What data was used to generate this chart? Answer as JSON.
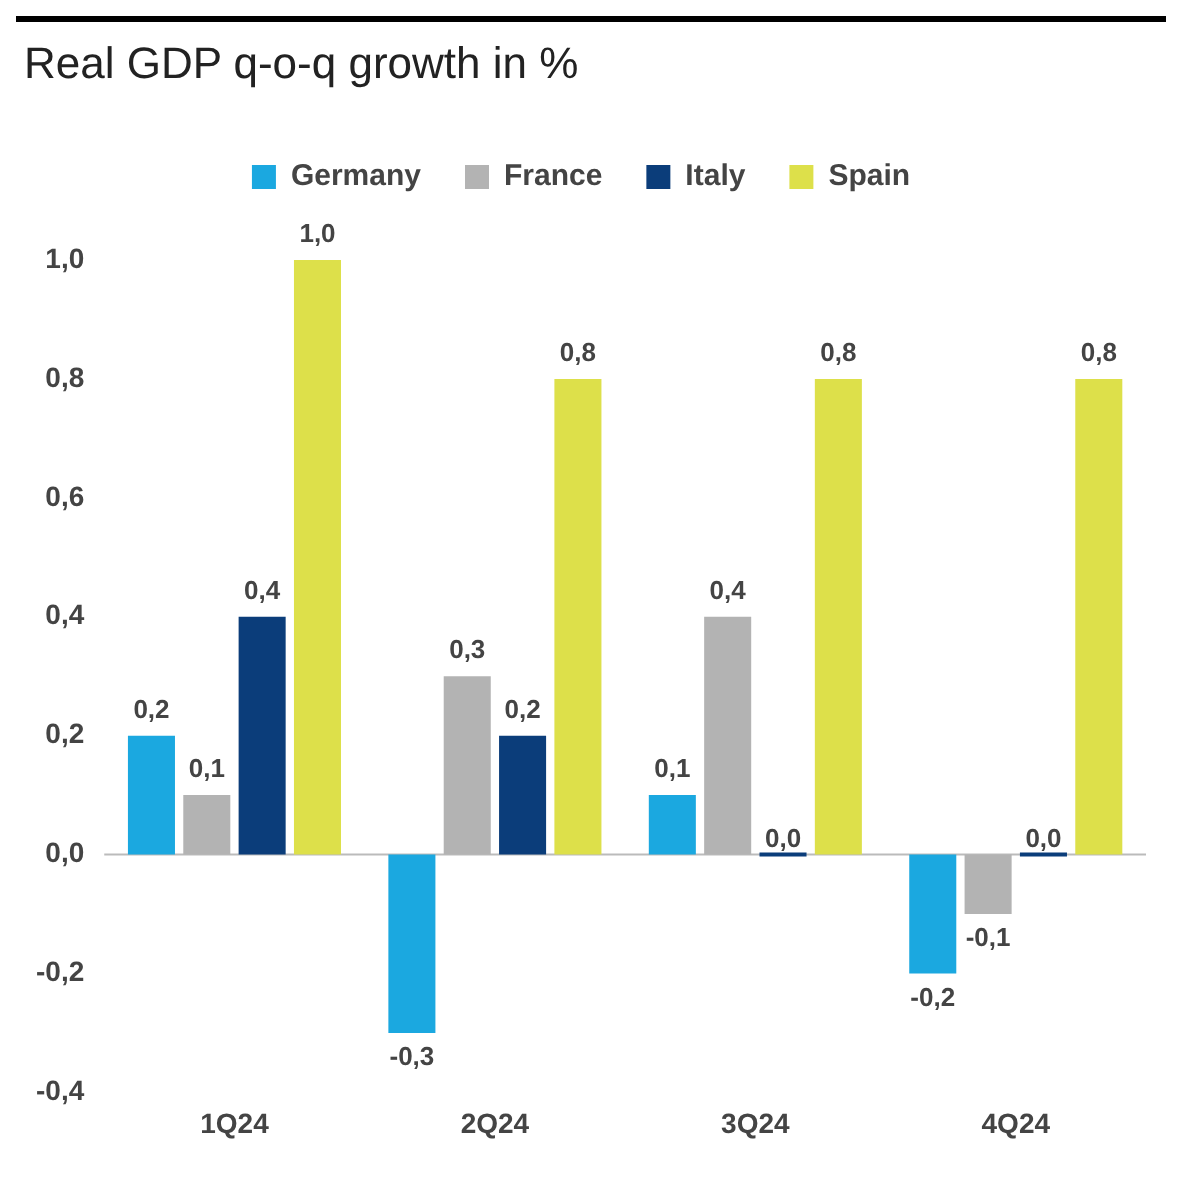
{
  "chart_data": {
    "type": "bar",
    "title": "Real GDP q-o-q growth in %",
    "categories": [
      "1Q24",
      "2Q24",
      "3Q24",
      "4Q24"
    ],
    "series": [
      {
        "name": "Germany",
        "color": "#1ba8e0",
        "values": [
          0.2,
          -0.3,
          0.1,
          -0.2
        ],
        "value_labels": [
          "0,2",
          "-0,3",
          "0,1",
          "-0,2"
        ]
      },
      {
        "name": "France",
        "color": "#b3b3b3",
        "values": [
          0.1,
          0.3,
          0.4,
          -0.1
        ],
        "value_labels": [
          "0,1",
          "0,3",
          "0,4",
          "-0,1"
        ]
      },
      {
        "name": "Italy",
        "color": "#0b3d7a",
        "values": [
          0.4,
          0.2,
          0.0,
          0.0
        ],
        "value_labels": [
          "0,4",
          "0,2",
          "0,0",
          "0,0"
        ]
      },
      {
        "name": "Spain",
        "color": "#dde04a",
        "values": [
          1.0,
          0.8,
          0.8,
          0.8
        ],
        "value_labels": [
          "1,0",
          "0,8",
          "0,8",
          "0,8"
        ]
      }
    ],
    "ylim": [
      -0.4,
      1.0
    ],
    "yticks": [
      {
        "value": -0.4,
        "label": "-0,4"
      },
      {
        "value": -0.2,
        "label": "-0,2"
      },
      {
        "value": 0,
        "label": "0,0"
      },
      {
        "value": 0.2,
        "label": "0,2"
      },
      {
        "value": 0.4,
        "label": "0,4"
      },
      {
        "value": 0.6,
        "label": "0,6"
      },
      {
        "value": 0.8,
        "label": "0,8"
      },
      {
        "value": 1.0,
        "label": "1,0"
      }
    ],
    "ref_lines": [
      {
        "axis": "y",
        "value": 0,
        "color": "#bbbbbb"
      }
    ],
    "grid": false,
    "legend": "top"
  }
}
